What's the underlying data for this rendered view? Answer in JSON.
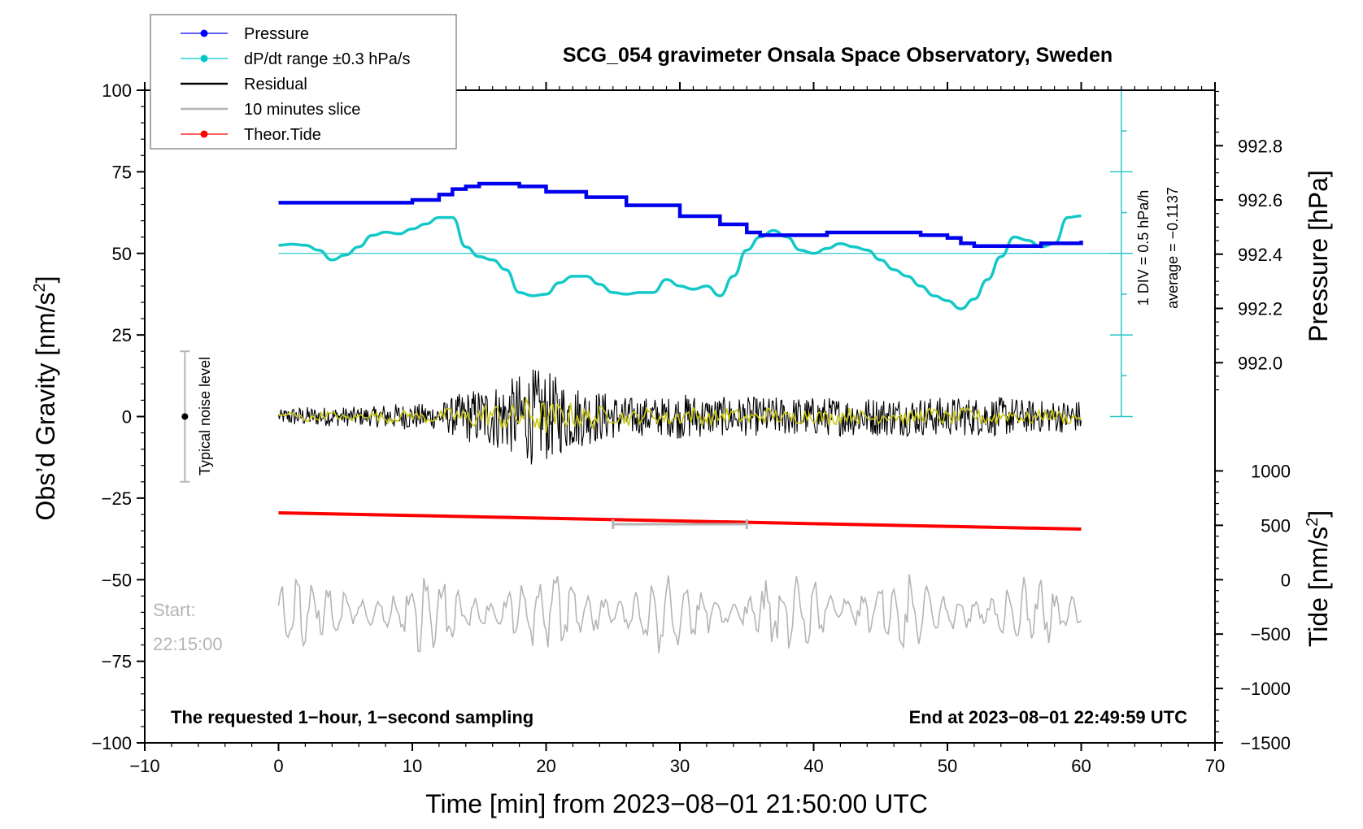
{
  "chart_data": {
    "type": "line",
    "title": "SCG_054 gravimeter Onsala Space Observatory, Sweden",
    "xlabel": "Time [min] from 2023−08−01 21:50:00 UTC",
    "ylabel": "Obs’d Gravity [nm/s",
    "ylabel_sup": "2",
    "ylabel_end": "]",
    "xlim": [
      -10,
      70
    ],
    "ylim": [
      -100,
      100
    ],
    "x_ticks": [
      -10,
      0,
      10,
      20,
      30,
      40,
      50,
      60,
      70
    ],
    "x_tick_labels": [
      "−10",
      "0",
      "10",
      "20",
      "30",
      "40",
      "50",
      "60",
      "70"
    ],
    "y_ticks": [
      100,
      75,
      50,
      25,
      0,
      -25,
      -50,
      -75,
      -100
    ],
    "y_tick_labels": [
      "100",
      "75",
      "50",
      "25",
      "0",
      "−25",
      "−50",
      "−75",
      "−100"
    ],
    "pressure_axis": {
      "label": "Pressure [hPa]",
      "ticks": [
        992.8,
        992.6,
        992.4,
        992.2,
        992.0
      ],
      "tick_labels": [
        "992.8",
        "992.6",
        "992.4",
        "992.2",
        "992.0"
      ],
      "map": {
        "p1": 992.0,
        "g1": 16.5,
        "p2": 992.8,
        "g2": 83.0
      }
    },
    "tide_axis": {
      "label": "Tide [nm/s",
      "label_sup": "2",
      "label_end": "]",
      "ticks": [
        1000,
        500,
        0,
        -500,
        -1000,
        -1500
      ],
      "tick_labels": [
        "1000",
        "500",
        "0",
        "−500",
        "−1000",
        "−1500"
      ],
      "map": {
        "t1": -1500,
        "g1": -100,
        "t2": 0,
        "g2": -50
      }
    },
    "legend": [
      {
        "label": "Pressure",
        "color": "#0000ff",
        "marker": true
      },
      {
        "label": "dP/dt range ±0.3 hPa/s",
        "color": "#00c8c8",
        "marker": true
      },
      {
        "label": "Residual",
        "color": "#000000",
        "marker": false
      },
      {
        "label": "10 minutes slice",
        "color": "#b5b5b5",
        "marker": false
      },
      {
        "label": "Theor.Tide",
        "color": "#ff0000",
        "marker": true
      }
    ],
    "series": [
      {
        "name": "Pressure",
        "unit": "hPa",
        "color": "#0000ff",
        "x": [
          0,
          2,
          4,
          7,
          10,
          12,
          13,
          14,
          15,
          17,
          18,
          20,
          23,
          26,
          30,
          33,
          35,
          36,
          38,
          41,
          44,
          46,
          48,
          50,
          51,
          52,
          53,
          55,
          57,
          59,
          60
        ],
        "values": [
          992.59,
          992.59,
          992.59,
          992.59,
          992.6,
          992.62,
          992.64,
          992.65,
          992.66,
          992.66,
          992.65,
          992.63,
          992.61,
          992.58,
          992.54,
          992.51,
          992.48,
          992.47,
          992.47,
          992.48,
          992.48,
          992.48,
          992.47,
          992.46,
          992.44,
          992.43,
          992.43,
          992.43,
          992.44,
          992.44,
          992.45
        ]
      },
      {
        "name": "dP/dt",
        "unit": "nm/s2 (plot units)",
        "color": "#00c8c8",
        "x": [
          0,
          1,
          2,
          3,
          4,
          5,
          6,
          7,
          8,
          9,
          10,
          11,
          12,
          13,
          14,
          15,
          16,
          17,
          18,
          19,
          20,
          21,
          22,
          23,
          24,
          25,
          26,
          27,
          28,
          29,
          30,
          31,
          32,
          33,
          34,
          35,
          36,
          37,
          38,
          39,
          40,
          41,
          42,
          43,
          44,
          45,
          46,
          47,
          48,
          49,
          50,
          51,
          52,
          53,
          54,
          55,
          56,
          57,
          58,
          59,
          60
        ],
        "values": [
          52.5,
          52.8,
          52.5,
          51,
          48,
          49.5,
          52,
          55.5,
          56.5,
          56,
          57.5,
          59,
          61,
          61,
          52,
          49,
          48,
          45,
          38,
          37,
          37.5,
          41,
          43,
          43,
          40.5,
          38,
          37.5,
          38,
          38,
          42,
          40,
          39,
          40,
          37,
          43,
          51,
          55,
          57,
          55,
          51,
          50,
          51.5,
          53,
          52,
          51,
          48,
          45,
          43,
          40,
          37,
          35.5,
          33,
          36,
          42,
          49,
          55,
          54,
          52,
          53,
          61,
          61.5
        ]
      },
      {
        "name": "Theor.Tide",
        "unit": "nm/s2",
        "color": "#ff0000",
        "x": [
          0,
          10,
          20,
          30,
          40,
          50,
          60
        ],
        "values": [
          615,
          590,
          565,
          540,
          515,
          490,
          465
        ]
      }
    ],
    "reference_line_value": 50,
    "dpdt_scale": {
      "label": "1 DIV = 0.5 hPa/h",
      "x": 63,
      "y_bottom": 0,
      "y_top": 100,
      "major_step": 25,
      "minor_step": 12.5
    },
    "average_label": "average = −0.1137",
    "residual_envelope": [
      2,
      3,
      3,
      3,
      3,
      3,
      3,
      3,
      4,
      4,
      4,
      4,
      4,
      6,
      8,
      9,
      10,
      11,
      13,
      15,
      14,
      12,
      10,
      9,
      8,
      7,
      6,
      6,
      6,
      6,
      7,
      7,
      6,
      6,
      6,
      6,
      6,
      6,
      6,
      6,
      6,
      6,
      6,
      6,
      6,
      6,
      6,
      6,
      6,
      6,
      6,
      6,
      6,
      6,
      6,
      6,
      5,
      5,
      5,
      5,
      5
    ],
    "slice_marker": {
      "x_start": 25,
      "x_end": 35,
      "y": -33
    },
    "noise_level": {
      "label": "Typical noise level",
      "x": -7,
      "y_center": 0,
      "y_min": -20,
      "y_max": 20
    },
    "slice_trace_center": -60,
    "start_label": "Start:",
    "start_time": "22:15:00",
    "bottom_left_note": "The requested 1−hour, 1−second sampling",
    "bottom_right_note": "End at 2023−08−01 22:49:59 UTC"
  }
}
